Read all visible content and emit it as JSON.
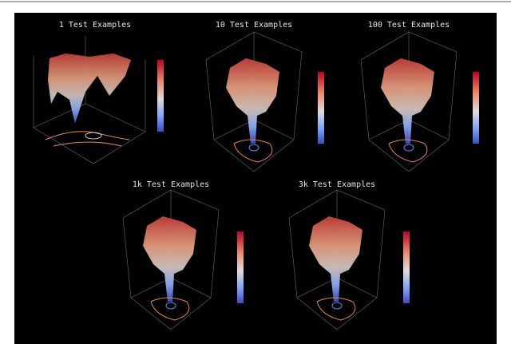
{
  "panels": [
    {
      "title": "1 Test Examples"
    },
    {
      "title": "10 Test Examples"
    },
    {
      "title": "100 Test Examples"
    },
    {
      "title": "1k Test Examples"
    },
    {
      "title": "3k Test Examples"
    }
  ]
}
